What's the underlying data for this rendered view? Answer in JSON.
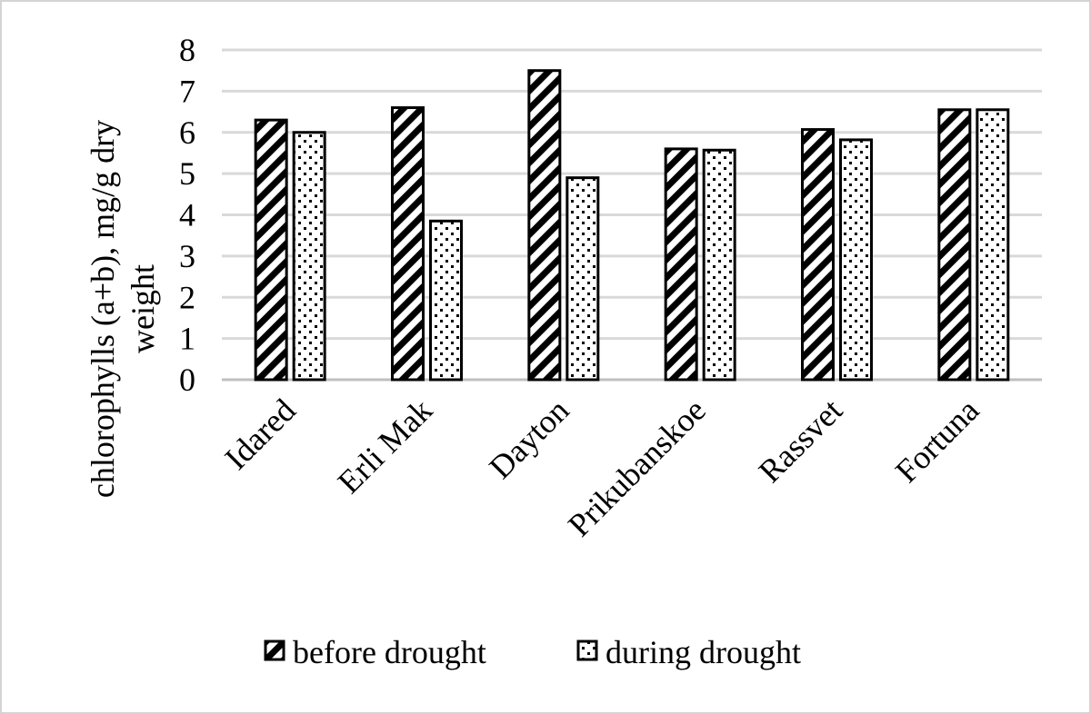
{
  "chart_data": {
    "type": "bar",
    "categories": [
      "Idared",
      "Erli Mak",
      "Dayton",
      "Prikubanskoe",
      "Rassvet",
      "Fortuna"
    ],
    "series": [
      {
        "name": "before drought",
        "values": [
          6.3,
          6.6,
          7.5,
          5.6,
          6.07,
          6.55
        ],
        "pattern": "diagonal-stripes"
      },
      {
        "name": "during drought",
        "values": [
          6.0,
          3.85,
          4.9,
          5.57,
          5.82,
          6.55
        ],
        "pattern": "dots"
      }
    ],
    "title": "",
    "xlabel": "",
    "ylabel": "chlorophylls (a+b), mg/g dry weight",
    "ylabel_lines": [
      "chlorophylls (a+b), mg/g dry",
      "weight"
    ],
    "ylim": [
      0,
      8
    ],
    "yticks": [
      "0",
      "1",
      "2",
      "3",
      "4",
      "5",
      "6",
      "7",
      "8"
    ],
    "grid": true,
    "legend_position": "bottom",
    "colors": {
      "bar_stroke": "#000000",
      "gridline": "#d9d9d9",
      "frame": "#d4d4d4"
    }
  }
}
